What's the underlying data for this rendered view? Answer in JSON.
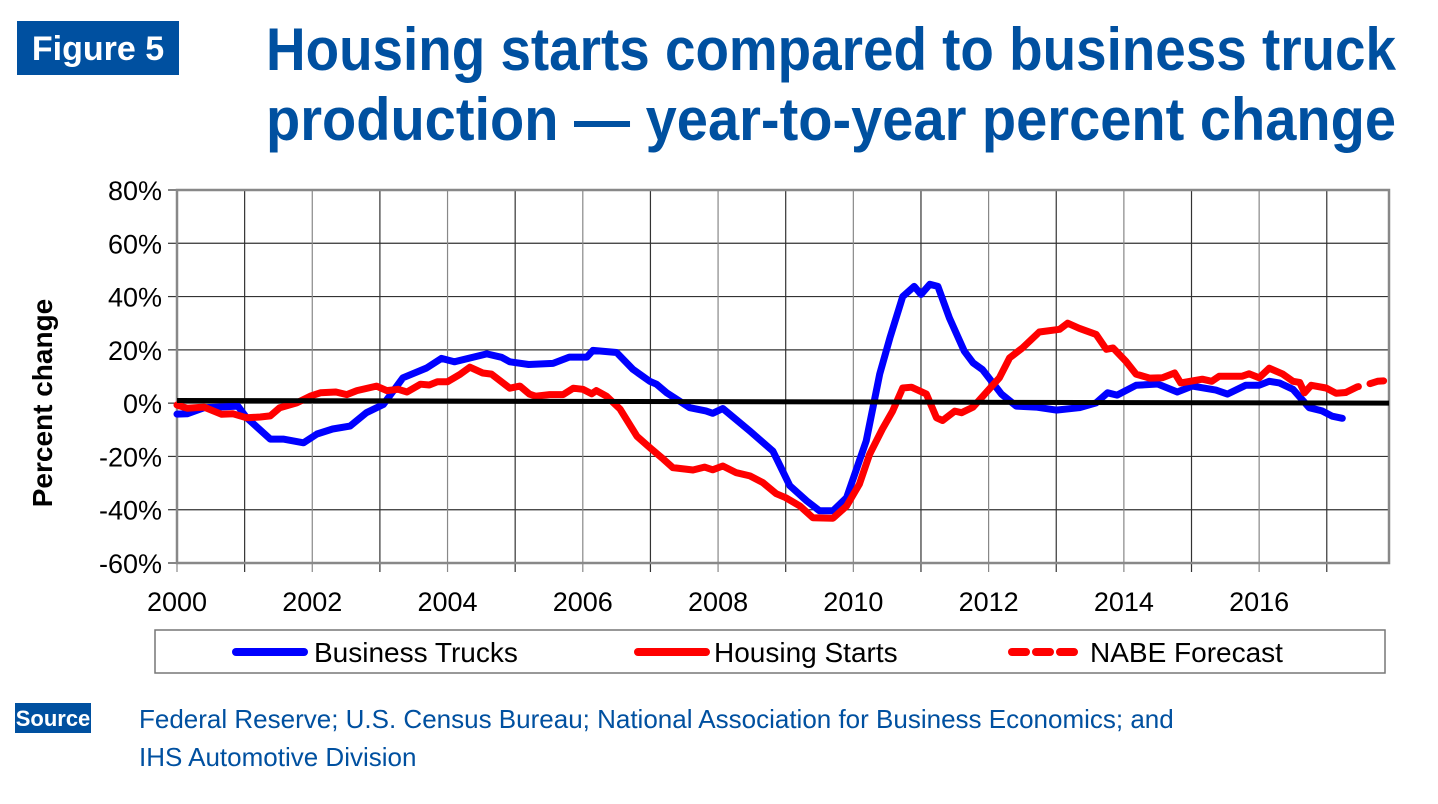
{
  "figure_label": "Figure 5",
  "title_lines": [
    "Housing starts compared to business truck",
    "production — year-to-year percent change"
  ],
  "source_label": "Source",
  "source_lines": [
    "Federal Reserve; U.S. Census Bureau; National Association for Business Economics; and",
    "IHS Automotive Division"
  ],
  "colors": {
    "brand": "#0050a0",
    "business_trucks": "#0000ff",
    "housing_starts": "#ff0000",
    "reference_line": "#000000",
    "grid": "#333333"
  },
  "chart_data": {
    "type": "line",
    "title": "Housing starts compared to business truck production — year-to-year percent change",
    "xlabel": "",
    "ylabel": "Percent change",
    "xlim": [
      2000,
      2017.92
    ],
    "ylim": [
      -60,
      80
    ],
    "grid": true,
    "legend_position": "bottom",
    "x_ticks": [
      2000,
      2002,
      2004,
      2006,
      2008,
      2010,
      2012,
      2014,
      2016
    ],
    "x_tick_labels": [
      "2000",
      "2002",
      "2004",
      "2006",
      "2008",
      "2010",
      "2012",
      "2014",
      "2016"
    ],
    "y_ticks": [
      80,
      60,
      40,
      20,
      0,
      -20,
      -40,
      -60
    ],
    "y_tick_labels": [
      "80%",
      "60%",
      "40%",
      "20%",
      "0%",
      "-20%",
      "-40%",
      "-60%"
    ],
    "reference_line": {
      "x": [
        2000,
        2017.92
      ],
      "y": [
        1,
        0
      ]
    },
    "series": [
      {
        "name": "Business Trucks",
        "color": "#0000ff",
        "dash": false,
        "points": [
          [
            2000.0,
            -4.1
          ],
          [
            2000.15,
            -4
          ],
          [
            2000.4,
            -1.7
          ],
          [
            2000.9,
            -1.1
          ],
          [
            2001.03,
            -5.5
          ],
          [
            2001.38,
            -13.5
          ],
          [
            2001.57,
            -13.5
          ],
          [
            2001.87,
            -14.9
          ],
          [
            2002.07,
            -11.6
          ],
          [
            2002.3,
            -9.7
          ],
          [
            2002.56,
            -8.6
          ],
          [
            2002.8,
            -3.6
          ],
          [
            2003.05,
            -0.5
          ],
          [
            2003.34,
            9.5
          ],
          [
            2003.69,
            13.2
          ],
          [
            2003.91,
            16.8
          ],
          [
            2004.1,
            15.5
          ],
          [
            2004.58,
            18.5
          ],
          [
            2004.8,
            17.2
          ],
          [
            2004.92,
            15.5
          ],
          [
            2005.2,
            14.5
          ],
          [
            2005.56,
            14.9
          ],
          [
            2005.8,
            17.3
          ],
          [
            2006.06,
            17.3
          ],
          [
            2006.15,
            19.8
          ],
          [
            2006.5,
            19
          ],
          [
            2006.74,
            12.7
          ],
          [
            2006.99,
            8.2
          ],
          [
            2007.09,
            7.1
          ],
          [
            2007.24,
            3.9
          ],
          [
            2007.58,
            -1.7
          ],
          [
            2007.82,
            -2.9
          ],
          [
            2007.92,
            -3.8
          ],
          [
            2008.07,
            -2.0
          ],
          [
            2008.47,
            -10.5
          ],
          [
            2008.81,
            -18
          ],
          [
            2009.06,
            -31
          ],
          [
            2009.31,
            -36.7
          ],
          [
            2009.5,
            -40.4
          ],
          [
            2009.7,
            -40.4
          ],
          [
            2009.9,
            -35.5
          ],
          [
            2010.19,
            -14.2
          ],
          [
            2010.39,
            10.9
          ],
          [
            2010.54,
            24.5
          ],
          [
            2010.73,
            40
          ],
          [
            2010.9,
            43.8
          ],
          [
            2011.0,
            40.8
          ],
          [
            2011.13,
            44.6
          ],
          [
            2011.25,
            43.8
          ],
          [
            2011.42,
            32
          ],
          [
            2011.64,
            19.5
          ],
          [
            2011.77,
            15.1
          ],
          [
            2011.91,
            12.6
          ],
          [
            2012.19,
            3.4
          ],
          [
            2012.41,
            -1.1
          ],
          [
            2012.7,
            -1.5
          ],
          [
            2013.0,
            -2.6
          ],
          [
            2013.34,
            -1.7
          ],
          [
            2013.59,
            0.1
          ],
          [
            2013.76,
            3.9
          ],
          [
            2013.9,
            3.0
          ],
          [
            2014.18,
            6.7
          ],
          [
            2014.5,
            7.2
          ],
          [
            2014.79,
            4.2
          ],
          [
            2015.01,
            6.4
          ],
          [
            2015.36,
            4.9
          ],
          [
            2015.53,
            3.4
          ],
          [
            2015.8,
            6.7
          ],
          [
            2016.0,
            6.7
          ],
          [
            2016.15,
            8.2
          ],
          [
            2016.3,
            7.6
          ],
          [
            2016.5,
            5.2
          ],
          [
            2016.74,
            -1.7
          ],
          [
            2016.93,
            -2.9
          ],
          [
            2017.08,
            -4.9
          ],
          [
            2017.23,
            -5.7
          ]
        ]
      },
      {
        "name": "Housing Starts",
        "color": "#ff0000",
        "dash": false,
        "points": [
          [
            2000.0,
            -0.7
          ],
          [
            2000.15,
            -1.9
          ],
          [
            2000.4,
            -1.5
          ],
          [
            2000.66,
            -4.2
          ],
          [
            2000.83,
            -4
          ],
          [
            2001.03,
            -5.5
          ],
          [
            2001.23,
            -5.2
          ],
          [
            2001.38,
            -4.8
          ],
          [
            2001.52,
            -1.7
          ],
          [
            2001.77,
            0.1
          ],
          [
            2001.97,
            2.6
          ],
          [
            2002.12,
            3.9
          ],
          [
            2002.35,
            4.2
          ],
          [
            2002.51,
            3.2
          ],
          [
            2002.66,
            4.7
          ],
          [
            2002.95,
            6.4
          ],
          [
            2003.1,
            4.7
          ],
          [
            2003.27,
            5.2
          ],
          [
            2003.4,
            4.2
          ],
          [
            2003.6,
            7.1
          ],
          [
            2003.73,
            6.8
          ],
          [
            2003.85,
            8
          ],
          [
            2004.0,
            8
          ],
          [
            2004.19,
            10.9
          ],
          [
            2004.33,
            13.5
          ],
          [
            2004.52,
            11.3
          ],
          [
            2004.65,
            10.9
          ],
          [
            2004.92,
            5.6
          ],
          [
            2005.07,
            6.4
          ],
          [
            2005.21,
            3.4
          ],
          [
            2005.3,
            2.6
          ],
          [
            2005.51,
            3.2
          ],
          [
            2005.71,
            3.2
          ],
          [
            2005.86,
            5.6
          ],
          [
            2006.0,
            5.2
          ],
          [
            2006.13,
            3.5
          ],
          [
            2006.2,
            4.7
          ],
          [
            2006.35,
            2.6
          ],
          [
            2006.55,
            -2.2
          ],
          [
            2006.8,
            -12.4
          ],
          [
            2006.99,
            -16.7
          ],
          [
            2007.19,
            -21
          ],
          [
            2007.33,
            -24.2
          ],
          [
            2007.63,
            -25.1
          ],
          [
            2007.8,
            -24
          ],
          [
            2007.92,
            -25
          ],
          [
            2008.07,
            -23.6
          ],
          [
            2008.27,
            -26.1
          ],
          [
            2008.47,
            -27.3
          ],
          [
            2008.66,
            -29.8
          ],
          [
            2008.86,
            -34
          ],
          [
            2009.0,
            -35.5
          ],
          [
            2009.21,
            -38.6
          ],
          [
            2009.4,
            -43
          ],
          [
            2009.7,
            -43.2
          ],
          [
            2009.9,
            -38.6
          ],
          [
            2010.09,
            -30.4
          ],
          [
            2010.24,
            -19.2
          ],
          [
            2010.43,
            -9.7
          ],
          [
            2010.58,
            -3
          ],
          [
            2010.73,
            5.7
          ],
          [
            2010.86,
            6.0
          ],
          [
            2011.08,
            3.4
          ],
          [
            2011.23,
            -5.5
          ],
          [
            2011.32,
            -6.5
          ],
          [
            2011.5,
            -3
          ],
          [
            2011.6,
            -3.6
          ],
          [
            2011.77,
            -1.5
          ],
          [
            2011.96,
            3.9
          ],
          [
            2012.16,
            9.5
          ],
          [
            2012.31,
            17
          ],
          [
            2012.5,
            20.7
          ],
          [
            2012.75,
            26.7
          ],
          [
            2013.05,
            27.7
          ],
          [
            2013.17,
            30
          ],
          [
            2013.34,
            28.1
          ],
          [
            2013.59,
            25.8
          ],
          [
            2013.74,
            20.2
          ],
          [
            2013.84,
            20.7
          ],
          [
            2014.03,
            15.7
          ],
          [
            2014.18,
            10.9
          ],
          [
            2014.38,
            9.4
          ],
          [
            2014.57,
            9.5
          ],
          [
            2014.75,
            11.3
          ],
          [
            2014.84,
            7.6
          ],
          [
            2015.16,
            9
          ],
          [
            2015.3,
            8.2
          ],
          [
            2015.41,
            10.1
          ],
          [
            2015.75,
            10.1
          ],
          [
            2015.85,
            11
          ],
          [
            2016.0,
            9.5
          ],
          [
            2016.15,
            13.1
          ],
          [
            2016.35,
            10.9
          ],
          [
            2016.5,
            8.2
          ],
          [
            2016.6,
            7.8
          ],
          [
            2016.67,
            3.9
          ],
          [
            2016.77,
            6.7
          ],
          [
            2016.99,
            5.7
          ],
          [
            2017.14,
            3.7
          ],
          [
            2017.28,
            4
          ]
        ]
      },
      {
        "name": "NABE Forecast",
        "color": "#ff0000",
        "dash": true,
        "points": [
          [
            2017.28,
            4
          ],
          [
            2017.45,
            6.1
          ],
          [
            2017.6,
            7
          ],
          [
            2017.75,
            8.2
          ],
          [
            2017.92,
            8.5
          ]
        ]
      }
    ]
  }
}
